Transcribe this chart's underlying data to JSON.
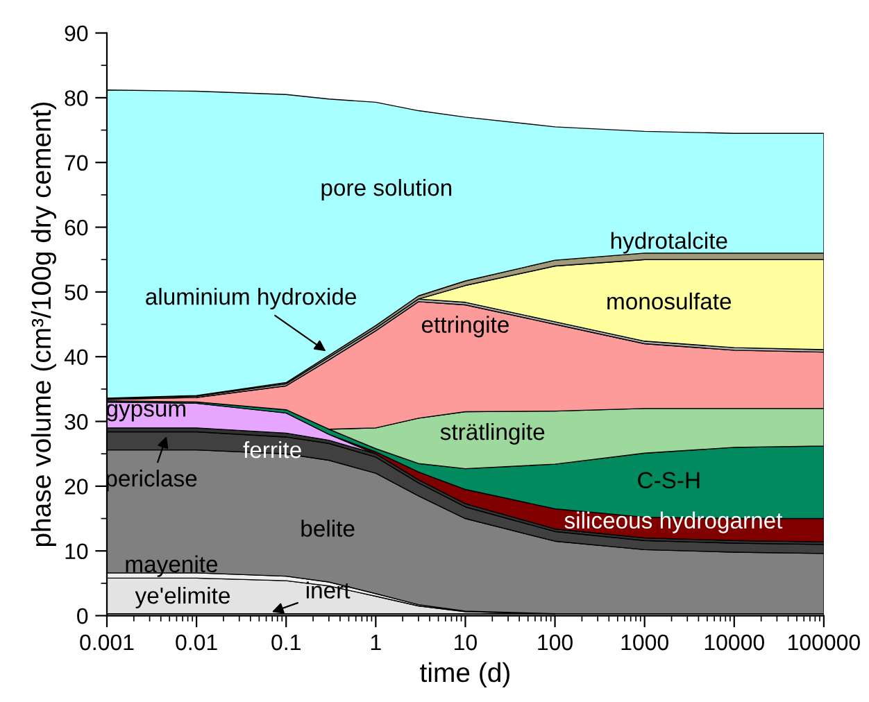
{
  "chart_data": {
    "type": "area",
    "stacked": true,
    "log": "x",
    "xlabel": "time (d)",
    "ylabel": "phase volume (cm³/100g dry cement)",
    "x": [
      0.001,
      0.01,
      0.1,
      0.3,
      1,
      3,
      10,
      100,
      1000,
      10000,
      100000
    ],
    "xlim": [
      0.001,
      100000
    ],
    "xticks": [
      0.001,
      0.01,
      0.1,
      1,
      10,
      100,
      1000,
      10000,
      100000
    ],
    "ylim": [
      0,
      90
    ],
    "yticks": [
      0,
      10,
      20,
      30,
      40,
      50,
      60,
      70,
      80,
      90
    ],
    "grid": false,
    "legend": false,
    "series": [
      {
        "color": "#f4f4f4",
        "values": [
          0.3,
          0.3,
          0.3,
          0.3,
          0.3,
          0.3,
          0.3,
          0.3,
          0.3,
          0.3,
          0.3
        ]
      },
      {
        "color": "#e3e3e3",
        "values": [
          5.5,
          5.5,
          5.1,
          4.3,
          2.7,
          1.2,
          0.3,
          0,
          null,
          null,
          null
        ]
      },
      {
        "color": "#f0f0f0",
        "values": [
          0.8,
          0.8,
          0.7,
          0.6,
          0.4,
          0.2,
          0.1,
          0,
          null,
          null,
          null
        ]
      },
      {
        "color": "#808080",
        "values": [
          19.0,
          19.0,
          18.9,
          18.8,
          18.6,
          16.8,
          14.3,
          11.2,
          9.9,
          9.5,
          9.3
        ]
      },
      {
        "color": "#404040",
        "values": [
          2.8,
          2.8,
          2.6,
          2.6,
          2.5,
          2.0,
          1.8,
          1.5,
          1.4,
          1.4,
          1.4
        ]
      },
      {
        "color": "#333333",
        "values": [
          0.6,
          0.6,
          0.6,
          0.5,
          0.5,
          0.5,
          0.5,
          0.4,
          0.4,
          0.4,
          0.4
        ]
      },
      {
        "color": "#e6a6ff",
        "values": [
          4.0,
          3.8,
          3.1,
          0.9,
          0,
          null,
          null,
          null,
          null,
          null,
          null
        ]
      },
      {
        "color": "#800000",
        "values": [
          null,
          null,
          null,
          0,
          0.3,
          1.2,
          2.2,
          3.1,
          3.2,
          3.4,
          3.6
        ]
      },
      {
        "color": "#008a5e",
        "values": [
          0.2,
          0.2,
          0.5,
          0.8,
          0.5,
          1.3,
          3.2,
          6.9,
          9.9,
          11.0,
          11.2
        ]
      },
      {
        "color": "#9dd89d",
        "values": [
          null,
          null,
          null,
          0,
          3.2,
          7.0,
          8.8,
          8.2,
          6.9,
          6.0,
          5.8
        ]
      },
      {
        "color": "#fd9a9a",
        "values": [
          0.2,
          0.7,
          3.7,
          10.7,
          15.0,
          18.0,
          16.5,
          13.4,
          10.0,
          9.0,
          8.7
        ]
      },
      {
        "color": "#b0b0b0",
        "values": [
          0.1,
          0.2,
          0.3,
          0.4,
          0.4,
          0.4,
          0.4,
          0.4,
          0.4,
          0.4,
          0.4
        ]
      },
      {
        "color": "#ffff9f",
        "values": [
          null,
          null,
          null,
          null,
          null,
          0,
          2.6,
          8.6,
          12.6,
          13.6,
          13.9
        ]
      },
      {
        "color": "#a09a7a",
        "values": [
          0.1,
          0.1,
          0.2,
          0.3,
          0.4,
          0.5,
          0.7,
          0.9,
          1.0,
          1.0,
          1.0
        ]
      },
      {
        "color": "#a8ffff",
        "values": [
          47.6,
          47.0,
          44.5,
          39.6,
          34.5,
          28.6,
          25.3,
          20.6,
          18.8,
          18.5,
          18.5
        ]
      }
    ],
    "annotations": [
      "pore solution",
      "hydrotalcite",
      "monosulfate",
      "aluminium hydroxide",
      "ettringite",
      "strätlingite",
      "gypsum",
      "ferrite",
      "periclase",
      "C-S-H",
      "siliceous hydrogarnet",
      "belite",
      "mayenite",
      "ye'elimite",
      "inert"
    ]
  }
}
